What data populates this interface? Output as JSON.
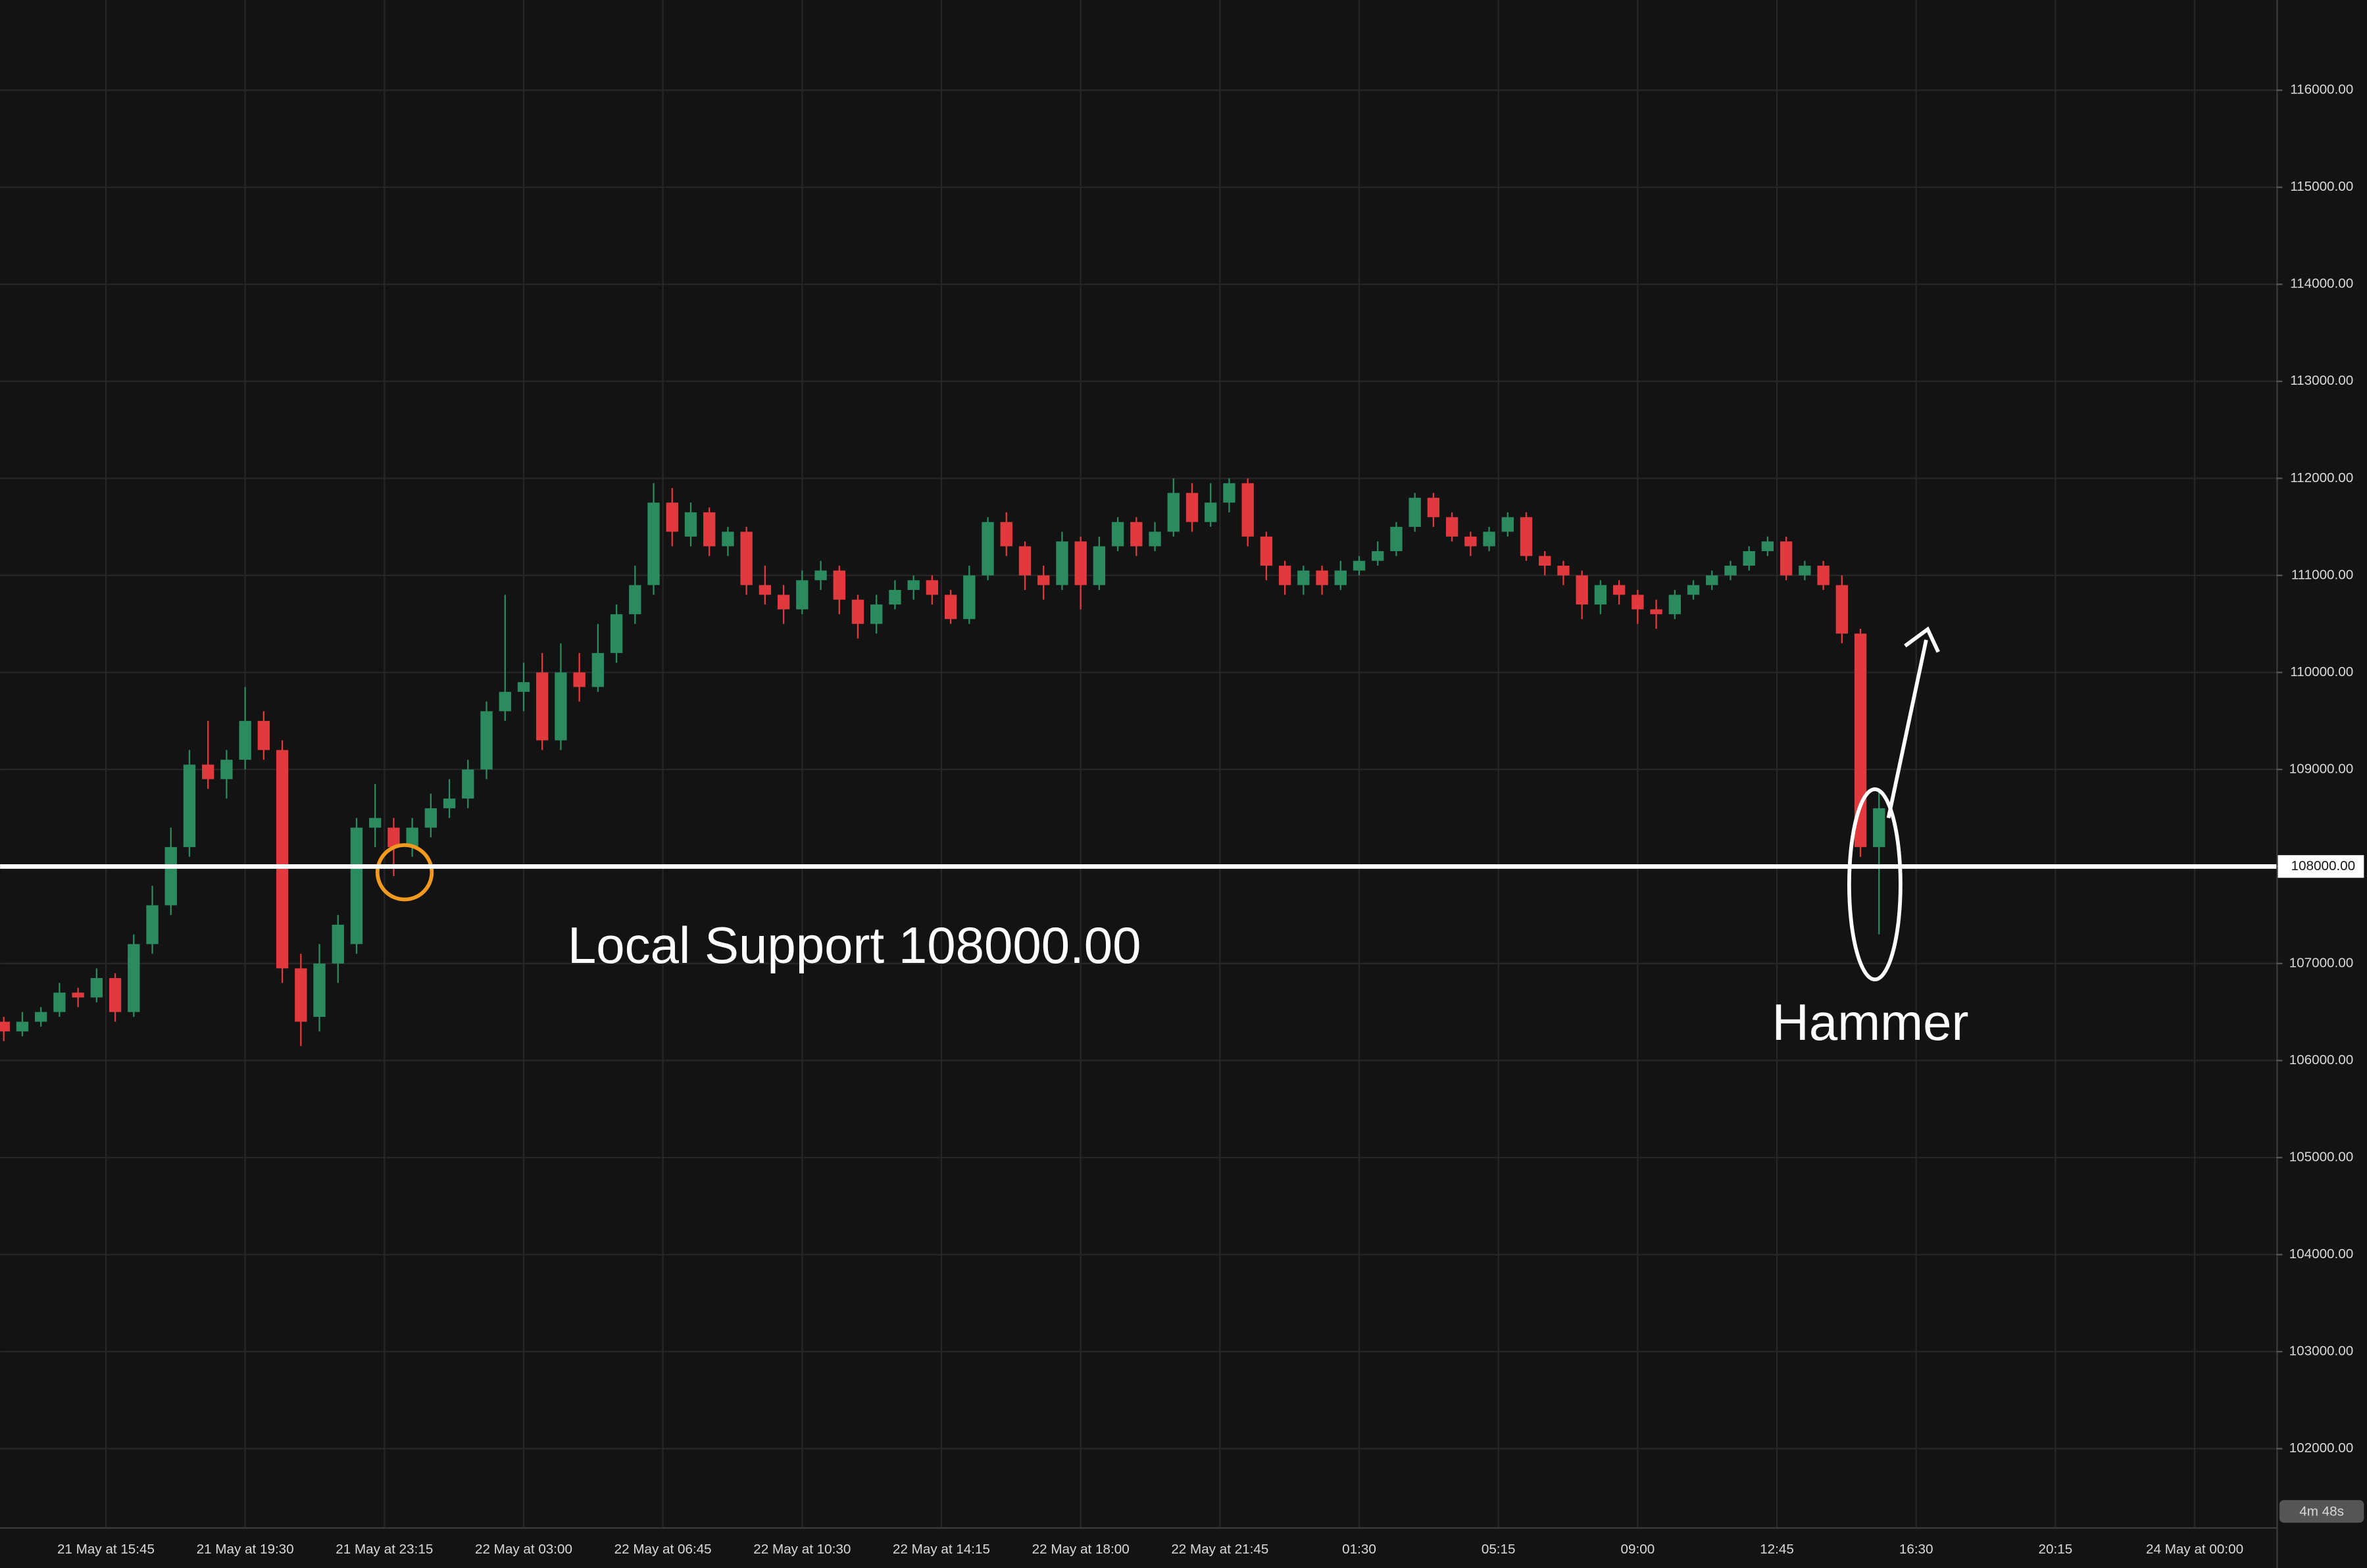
{
  "chart_data": {
    "type": "candlestick",
    "open": [
      106400,
      106300,
      106400,
      106500,
      106700,
      106650,
      106850,
      106500,
      107200,
      107600,
      108200,
      109050,
      108900,
      109100,
      109500,
      109200,
      106950,
      106450,
      107000,
      107200,
      108400,
      108400,
      108200,
      108400,
      108600,
      108700,
      109000,
      109600,
      109800,
      110000,
      109300,
      110000,
      109850,
      110200,
      110600,
      110900,
      111750,
      111400,
      111650,
      111300,
      111450,
      110900,
      110800,
      110650,
      110950,
      111050,
      110750,
      110500,
      110700,
      110850,
      110950,
      110800,
      110550,
      111000,
      111550,
      111300,
      111000,
      110900,
      111350,
      110900,
      111300,
      111550,
      111300,
      111450,
      111850,
      111550,
      111750,
      111950,
      111400,
      111100,
      110900,
      111050,
      110900,
      111050,
      111150,
      111250,
      111500,
      111800,
      111600,
      111400,
      111300,
      111450,
      111600,
      111200,
      111100,
      111000,
      110700,
      110900,
      110800,
      110650,
      110600,
      110800,
      110900,
      111000,
      111100,
      111250,
      111350,
      111000,
      111100,
      110900,
      110400,
      108200
    ],
    "high": [
      106450,
      106500,
      106550,
      106800,
      106750,
      106950,
      106900,
      107300,
      107800,
      108400,
      109200,
      109500,
      109200,
      109850,
      109600,
      109300,
      107100,
      107200,
      107500,
      108500,
      108850,
      108500,
      108500,
      108750,
      108900,
      109100,
      109700,
      110800,
      110100,
      110200,
      110300,
      110200,
      110500,
      110700,
      111100,
      111950,
      111900,
      111750,
      111700,
      111500,
      111500,
      111100,
      110900,
      111050,
      111150,
      111100,
      110800,
      110800,
      110950,
      111000,
      111000,
      110850,
      111100,
      111600,
      111650,
      111350,
      111100,
      111450,
      111400,
      111400,
      111600,
      111600,
      111550,
      112000,
      111950,
      111950,
      112000,
      112000,
      111450,
      111150,
      111100,
      111100,
      111150,
      111200,
      111350,
      111550,
      111850,
      111850,
      111650,
      111450,
      111500,
      111650,
      111650,
      111250,
      111150,
      111050,
      110950,
      110950,
      110850,
      110750,
      110850,
      110950,
      111050,
      111150,
      111300,
      111400,
      111400,
      111150,
      111150,
      111000,
      110450,
      108800
    ],
    "low": [
      106200,
      106250,
      106350,
      106450,
      106550,
      106600,
      106400,
      106450,
      107100,
      107500,
      108100,
      108800,
      108700,
      109000,
      109100,
      106800,
      106150,
      106300,
      106800,
      107100,
      108200,
      107900,
      108100,
      108300,
      108500,
      108600,
      108900,
      109500,
      109600,
      109200,
      109200,
      109700,
      109800,
      110100,
      110500,
      110800,
      111300,
      111300,
      111200,
      111200,
      110800,
      110700,
      110500,
      110600,
      110850,
      110600,
      110350,
      110400,
      110650,
      110750,
      110700,
      110500,
      110500,
      110950,
      111200,
      110850,
      110750,
      110850,
      110650,
      110850,
      111250,
      111200,
      111250,
      111400,
      111450,
      111500,
      111650,
      111300,
      110950,
      110800,
      110800,
      110800,
      110850,
      111000,
      111100,
      111200,
      111450,
      111500,
      111350,
      111200,
      111250,
      111400,
      111150,
      111000,
      110900,
      110550,
      110600,
      110700,
      110500,
      110450,
      110550,
      110750,
      110850,
      110950,
      111050,
      111200,
      110950,
      110950,
      110850,
      110300,
      108100,
      107300
    ],
    "close": [
      106300,
      106400,
      106500,
      106700,
      106650,
      106850,
      106500,
      107200,
      107600,
      108200,
      109050,
      108900,
      109100,
      109500,
      109200,
      106950,
      106400,
      107000,
      107400,
      108400,
      108500,
      108200,
      108400,
      108600,
      108700,
      109000,
      109600,
      109800,
      109900,
      109300,
      110000,
      109850,
      110200,
      110600,
      110900,
      111750,
      111450,
      111650,
      111300,
      111450,
      110900,
      110800,
      110650,
      110950,
      111050,
      110750,
      110500,
      110700,
      110850,
      110950,
      110800,
      110550,
      111000,
      111550,
      111300,
      111000,
      110900,
      111350,
      110900,
      111300,
      111550,
      111300,
      111450,
      111850,
      111550,
      111750,
      111950,
      111400,
      111100,
      110900,
      111050,
      110900,
      111050,
      111150,
      111250,
      111500,
      111800,
      111600,
      111400,
      111300,
      111450,
      111600,
      111200,
      111100,
      111000,
      110700,
      110900,
      110800,
      110650,
      110600,
      110800,
      110900,
      111000,
      111100,
      111250,
      111350,
      111000,
      111100,
      110900,
      110400,
      108200,
      108600
    ],
    "up_color": "#2b8a5e",
    "down_color": "#e0393e",
    "xlim": [
      -0.2,
      122.4
    ],
    "xticks": [
      {
        "value": 5.5,
        "label": "21 May at 15:45"
      },
      {
        "value": 13,
        "label": "21 May at 19:30"
      },
      {
        "value": 20.5,
        "label": "21 May at 23:15"
      },
      {
        "value": 28,
        "label": "22 May at 03:00"
      },
      {
        "value": 35.5,
        "label": "22 May at 06:45"
      },
      {
        "value": 43,
        "label": "22 May at 10:30"
      },
      {
        "value": 50.5,
        "label": "22 May at 14:15"
      },
      {
        "value": 58,
        "label": "22 May at 18:00"
      },
      {
        "value": 65.5,
        "label": "22 May at 21:45"
      },
      {
        "value": 73,
        "label": "01:30"
      },
      {
        "value": 80.5,
        "label": "05:15"
      },
      {
        "value": 88,
        "label": "09:00"
      },
      {
        "value": 95.5,
        "label": "12:45"
      },
      {
        "value": 103,
        "label": "16:30"
      },
      {
        "value": 110.5,
        "label": "20:15"
      },
      {
        "value": 118,
        "label": "24 May at 00:00"
      }
    ],
    "ylim": [
      101190,
      116930
    ],
    "yticks": [
      {
        "value": 102000,
        "label": "102000.00"
      },
      {
        "value": 103000,
        "label": "103000.00"
      },
      {
        "value": 104000,
        "label": "104000.00"
      },
      {
        "value": 105000,
        "label": "105000.00"
      },
      {
        "value": 106000,
        "label": "106000.00"
      },
      {
        "value": 107000,
        "label": "107000.00"
      },
      {
        "value": 108000,
        "label": "108000.00"
      },
      {
        "value": 109000,
        "label": "109000.00"
      },
      {
        "value": 110000,
        "label": "110000.00"
      },
      {
        "value": 111000,
        "label": "111000.00"
      },
      {
        "value": 112000,
        "label": "112000.00"
      },
      {
        "value": 113000,
        "label": "113000.00"
      },
      {
        "value": 114000,
        "label": "114000.00"
      },
      {
        "value": 115000,
        "label": "115000.00"
      },
      {
        "value": 116000,
        "label": "116000.00"
      }
    ],
    "grid": true,
    "support": {
      "value": 108000,
      "label": "108000.00"
    },
    "annotations": [
      "Local Support 108000.00",
      "Hammer"
    ],
    "countdown": "4m 48s"
  }
}
